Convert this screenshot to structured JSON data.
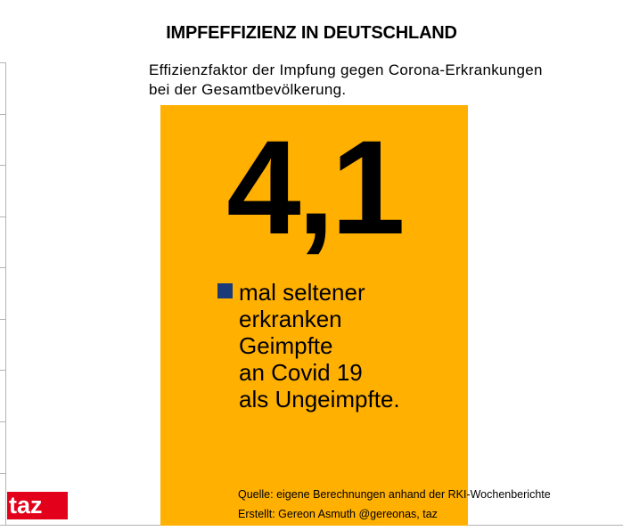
{
  "title": "IMPFEFFIZIENZ IN DEUTSCHLAND",
  "subtitle": {
    "line1": "Effizienzfaktor der Impfung gegen Corona-Erkrankungen",
    "line2": "bei der Gesamtbevölkerung."
  },
  "chart_data": {
    "type": "bar",
    "categories": [
      ""
    ],
    "values": [
      4.1
    ],
    "value_label": "4,1",
    "legend": {
      "lines": [
        "mal seltener",
        "erkranken",
        "Geimpfte",
        "an Covid 19",
        "als Ungeimpfte."
      ],
      "marker_color": "#1a3a7a"
    },
    "bar_color": "#ffb000",
    "grid": false
  },
  "source": {
    "line1": "Quelle: eigene Berechnungen anhand der RKI-Wochenberichte",
    "line2": "Erstellt: Gereon Asmuth @gereonas, taz"
  },
  "logo": {
    "text": "taz",
    "color": "#e2001a"
  }
}
